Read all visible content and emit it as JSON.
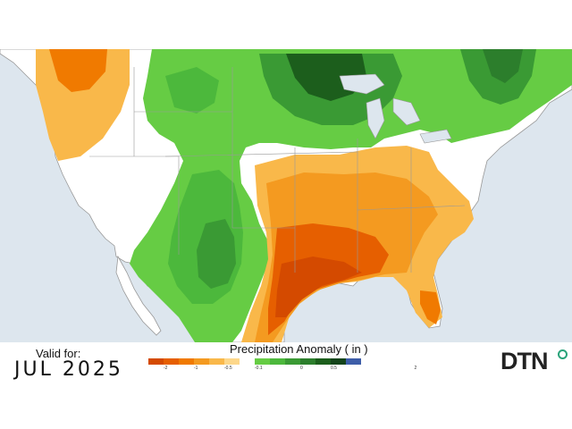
{
  "valid_label": "Valid for:",
  "valid_date": "JUL 2025",
  "legend": {
    "title": "Precipitation Anomaly ( in )",
    "colors": [
      "#d44a00",
      "#e65f00",
      "#f07a00",
      "#f49a20",
      "#f9b84a",
      "#fdd78a",
      "#ffffff",
      "#66cc44",
      "#4cb83c",
      "#3a9a34",
      "#2c7e2c",
      "#1c5e1c",
      "#14441a",
      "#3d5da8"
    ],
    "ticks": [
      "-2",
      "-1",
      "-0.5",
      "-0.1",
      "0",
      "0.5",
      "2"
    ]
  },
  "brand": "DTN",
  "colors": {
    "water": "#dde6ee",
    "land": "#ffffff",
    "border": "#888888"
  }
}
